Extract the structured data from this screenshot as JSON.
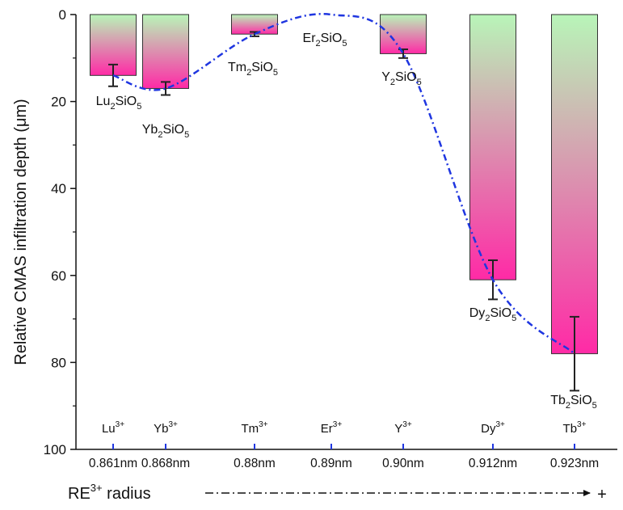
{
  "chart_data": {
    "type": "bar",
    "ylabel": "Relative CMAS infiltration depth (μm)",
    "xlabel": "RE",
    "xlabel_sup": "3+",
    "xlabel_rest": " radius",
    "x_direction_sign": "+",
    "ylim": [
      0,
      100
    ],
    "y_inverted": true,
    "y_ticks": [
      0,
      20,
      40,
      60,
      80,
      100
    ],
    "bar_gradient": {
      "top": "#b8f5b8",
      "bottom": "#ff2aa6"
    },
    "trend_line_color": "#1f36e0",
    "categories": [
      {
        "ion": "Lu",
        "radius": "0.861nm",
        "r": 0.861,
        "compound": {
          "a": "Lu",
          "n1": "2",
          "b": "SiO",
          "n2": "5"
        },
        "value": 14,
        "err": 2.5,
        "bar": true
      },
      {
        "ion": "Yb",
        "radius": "0.868nm",
        "r": 0.868,
        "compound": {
          "a": "Yb",
          "n1": "2",
          "b": "SiO",
          "n2": "5"
        },
        "value": 17,
        "err": 1.5,
        "bar": true
      },
      {
        "ion": "Tm",
        "radius": "0.88nm",
        "r": 0.88,
        "compound": {
          "a": "Tm",
          "n1": "2",
          "b": "SiO",
          "n2": "5"
        },
        "value": 4.5,
        "err": 0.5,
        "bar": true
      },
      {
        "ion": "Er",
        "radius": "0.89nm",
        "r": 0.89,
        "compound": {
          "a": "Er",
          "n1": "2",
          "b": "SiO",
          "n2": "5"
        },
        "value": 0,
        "err": 0,
        "bar": false
      },
      {
        "ion": "Y",
        "radius": "0.90nm",
        "r": 0.9,
        "compound": {
          "a": "Y",
          "n1": "2",
          "b": "SiO",
          "n2": "5"
        },
        "value": 9,
        "err": 1,
        "bar": true
      },
      {
        "ion": "Dy",
        "radius": "0.912nm",
        "r": 0.912,
        "compound": {
          "a": "Dy",
          "n1": "2",
          "b": "SiO",
          "n2": "5"
        },
        "value": 61,
        "err": 4.5,
        "bar": true
      },
      {
        "ion": "Tb",
        "radius": "0.923nm",
        "r": 0.923,
        "compound": {
          "a": "Tb",
          "n1": "2",
          "b": "SiO",
          "n2": "5"
        },
        "value": 78,
        "err": 8.5,
        "bar": true
      }
    ],
    "ion_charge": "3+"
  }
}
